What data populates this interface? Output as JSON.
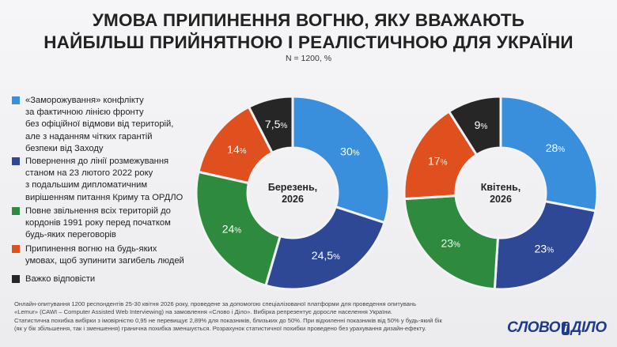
{
  "title": {
    "line1": "УМОВА ПРИПИНЕННЯ ВОГНЮ, ЯКУ ВВАЖАЮТЬ",
    "line2": "НАЙБІЛЬШ ПРИЙНЯТНОЮ І РЕАЛІСТИЧНОЮ ДЛЯ УКРАЇНИ"
  },
  "sample": "N = 1200, %",
  "legend": [
    {
      "label": "«Заморожування» конфлікту за фактичною лінією фронту без офіційної відмови від територій, але з наданням чітких гарантій безпеки від Заходу",
      "lines": [
        "«Заморожування» конфлікту",
        "за фактичною лінією фронту",
        "без офіційної відмови від територій,",
        "але з наданням чітких гарантій",
        "безпеки від Заходу"
      ],
      "color": "#3a8fdc"
    },
    {
      "label": "Повернення до лінії розмежування станом на 23 лютого 2022 року з подальшим дипломатичним вирішенням питання Криму та ОРДЛО",
      "lines": [
        "Повернення до лінії розмежування",
        "станом на 23 лютого 2022 року",
        "з подальшим дипломатичним",
        "вирішенням питання Криму та ОРДЛО"
      ],
      "color": "#2f4896"
    },
    {
      "label": "Повне звільнення всіх територій до кордонів 1991 року перед початком будь-яких переговорів",
      "lines": [
        "Повне звільнення всіх територій до",
        "кордонів 1991 року перед початком",
        "будь-яких переговорів"
      ],
      "color": "#2e8b3e"
    },
    {
      "label": "Припинення вогню на будь-яких умовах, щоб зупинити загибель людей",
      "lines": [
        "Припинення вогню на будь-яких",
        "умовах, щоб зупинити загибель людей"
      ],
      "color": "#e0501f"
    },
    {
      "label": "Важко відповісти",
      "lines": [
        "Важко відповісти"
      ],
      "color": "#262626"
    }
  ],
  "chart_data": [
    {
      "type": "pie",
      "center_label": [
        "Березень,",
        "2026"
      ],
      "categories": [
        "«Заморожування» конфлікту",
        "Повернення до лінії розмежування",
        "Повне звільнення всіх територій",
        "Припинення вогню на будь-яких умовах",
        "Важко відповісти"
      ],
      "values": [
        30,
        24.5,
        24,
        14,
        7.5
      ],
      "value_labels": [
        "30",
        "24,5",
        "24",
        "14",
        "7,5"
      ],
      "colors": [
        "#3a8fdc",
        "#2f4896",
        "#2e8b3e",
        "#e0501f",
        "#262626"
      ]
    },
    {
      "type": "pie",
      "center_label": [
        "Квітень,",
        "2026"
      ],
      "categories": [
        "«Заморожування» конфлікту",
        "Повернення до лінії розмежування",
        "Повне звільнення всіх територій",
        "Припинення вогню на будь-яких умовах",
        "Важко відповісти"
      ],
      "values": [
        28,
        23,
        23,
        17,
        9
      ],
      "value_labels": [
        "28",
        "23",
        "23",
        "17",
        "9"
      ],
      "colors": [
        "#3a8fdc",
        "#2f4896",
        "#2e8b3e",
        "#e0501f",
        "#262626"
      ]
    }
  ],
  "percent_sign": "%",
  "footnote": [
    "Онлайн-опитування 1200 респондентів 25-30 квітня 2026 року, проведене за допомогою спеціалізованої платформи для проведення опитувань",
    "«Lemur» (CAWI – Computer Assisted Web Interviewing) на замовлення «Слово і Діло». Вибірка репрезентує доросле населення України.",
    "Статистична похибка вибірки з імовірністю 0,95 не перевищує 2,89% для показників, близьких до 50%. При відхиленні показників від 50% у будь-який бік",
    "(як у бік збільшення, так і зменшення) гранична похибка зменшується. Розрахунок статистичної похибки проведено без урахування дизайн-ефекту."
  ],
  "logo": {
    "left": "СЛОВО",
    "mid": "і",
    "right": "ДІЛО"
  }
}
